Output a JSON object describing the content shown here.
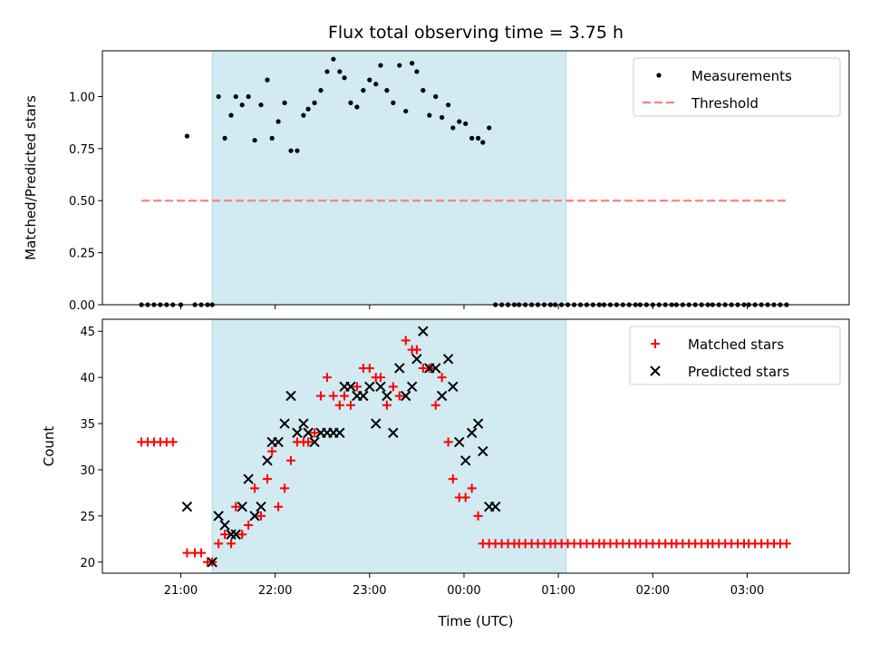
{
  "chart_data": {
    "title": "Flux total observing time = 3.75 h",
    "xlabel": "Time (UTC)",
    "x_ticks": [
      "21:00",
      "22:00",
      "23:00",
      "00:00",
      "01:00",
      "02:00",
      "03:00"
    ],
    "x_tick_hours": [
      21,
      22,
      23,
      24,
      25,
      26,
      27
    ],
    "xlim": [
      20.17,
      28.08
    ],
    "shaded_interval": {
      "start": "21:20",
      "end": "01:05",
      "color": "#add8e6"
    },
    "panels": [
      {
        "type": "scatter",
        "ylabel": "Matched/Predicted stars",
        "ylim": [
          0,
          1.22
        ],
        "y_ticks": [
          "0.00",
          "0.25",
          "0.50",
          "0.75",
          "1.00"
        ],
        "legend_position": "top-right",
        "series": [
          {
            "name": "Measurements",
            "marker": "dot",
            "color": "#000000",
            "x": [
              "20:35",
              "20:39",
              "20:43",
              "20:47",
              "20:51",
              "20:55",
              "21:00",
              "21:04",
              "21:09",
              "21:13",
              "21:17",
              "21:20",
              "21:24",
              "21:28",
              "21:32",
              "21:35",
              "21:39",
              "21:43",
              "21:47",
              "21:51",
              "21:55",
              "21:58",
              "22:02",
              "22:06",
              "22:10",
              "22:14",
              "22:18",
              "22:21",
              "22:25",
              "22:29",
              "22:33",
              "22:37",
              "22:41",
              "22:44",
              "22:48",
              "22:52",
              "22:56",
              "23:00",
              "23:04",
              "23:07",
              "23:11",
              "23:15",
              "23:19",
              "23:23",
              "23:27",
              "23:30",
              "23:34",
              "23:38",
              "23:42",
              "23:46",
              "23:50",
              "23:53",
              "23:57",
              "00:01",
              "00:05",
              "00:09",
              "00:12",
              "00:16",
              "00:20",
              "00:24",
              "00:28",
              "00:32",
              "00:35",
              "00:39",
              "00:43",
              "00:47",
              "00:51",
              "00:55",
              "00:58",
              "01:02",
              "01:06",
              "01:10",
              "01:14",
              "01:18",
              "01:22",
              "01:26",
              "01:29",
              "01:33",
              "01:37",
              "01:41",
              "01:45",
              "01:49",
              "01:52",
              "01:56",
              "02:00",
              "02:04",
              "02:08",
              "02:12",
              "02:15",
              "02:19",
              "02:23",
              "02:27",
              "02:31",
              "02:35",
              "02:38",
              "02:42",
              "02:46",
              "02:50",
              "02:54",
              "02:58",
              "03:01",
              "03:05",
              "03:09",
              "03:13",
              "03:17",
              "03:21",
              "03:25"
            ],
            "values": [
              0,
              0,
              0,
              0,
              0,
              0,
              0,
              0.81,
              0,
              0,
              0,
              0,
              1.0,
              0.8,
              0.91,
              1.0,
              0.96,
              1.0,
              0.79,
              0.96,
              1.08,
              0.8,
              0.88,
              0.97,
              0.74,
              0.74,
              0.91,
              0.94,
              0.97,
              1.03,
              1.12,
              1.18,
              1.12,
              1.09,
              0.97,
              0.95,
              1.03,
              1.08,
              1.06,
              1.15,
              1.03,
              0.97,
              1.15,
              0.93,
              1.16,
              1.12,
              1.03,
              0.91,
              1.0,
              0.9,
              0.96,
              0.85,
              0.88,
              0.87,
              0.8,
              0.8,
              0.78,
              0.85,
              0,
              0,
              0,
              0,
              0,
              0,
              0,
              0,
              0,
              0,
              0,
              0,
              0,
              0,
              0,
              0,
              0,
              0,
              0,
              0,
              0,
              0,
              0,
              0,
              0,
              0,
              0,
              0,
              0,
              0,
              0,
              0,
              0,
              0,
              0,
              0,
              0,
              0,
              0,
              0,
              0,
              0,
              0,
              0,
              0,
              0,
              0,
              0,
              0
            ]
          },
          {
            "name": "Threshold",
            "type": "line",
            "style": "dashed",
            "color": "#ff7f7f",
            "x": [
              "20:35",
              "03:25"
            ],
            "values": [
              0.5,
              0.5
            ]
          }
        ]
      },
      {
        "type": "scatter",
        "ylabel": "Count",
        "ylim": [
          18.8,
          46.3
        ],
        "y_ticks": [
          "20",
          "25",
          "30",
          "35",
          "40",
          "45"
        ],
        "legend_position": "top-right",
        "series": [
          {
            "name": "Matched stars",
            "marker": "plus",
            "color": "#ff0000",
            "x": [
              "20:35",
              "20:39",
              "20:43",
              "20:47",
              "20:51",
              "20:55",
              "21:04",
              "21:09",
              "21:13",
              "21:17",
              "21:20",
              "21:24",
              "21:28",
              "21:32",
              "21:35",
              "21:39",
              "21:43",
              "21:47",
              "21:51",
              "21:55",
              "21:58",
              "22:02",
              "22:06",
              "22:10",
              "22:14",
              "22:18",
              "22:21",
              "22:25",
              "22:29",
              "22:33",
              "22:37",
              "22:41",
              "22:44",
              "22:48",
              "22:52",
              "22:56",
              "23:00",
              "23:04",
              "23:07",
              "23:11",
              "23:15",
              "23:19",
              "23:23",
              "23:27",
              "23:30",
              "23:34",
              "23:38",
              "23:42",
              "23:46",
              "23:50",
              "23:53",
              "23:57",
              "00:01",
              "00:05",
              "00:09",
              "00:12",
              "00:16",
              "00:20",
              "00:24",
              "00:28",
              "00:32",
              "00:35",
              "00:39",
              "00:43",
              "00:47",
              "00:51",
              "00:55",
              "00:58",
              "01:02",
              "01:06",
              "01:10",
              "01:14",
              "01:18",
              "01:22",
              "01:26",
              "01:29",
              "01:33",
              "01:37",
              "01:41",
              "01:45",
              "01:49",
              "01:52",
              "01:56",
              "02:00",
              "02:04",
              "02:08",
              "02:12",
              "02:15",
              "02:19",
              "02:23",
              "02:27",
              "02:31",
              "02:35",
              "02:38",
              "02:42",
              "02:46",
              "02:50",
              "02:54",
              "02:58",
              "03:01",
              "03:05",
              "03:09",
              "03:13",
              "03:17",
              "03:21",
              "03:25"
            ],
            "values": [
              33,
              33,
              33,
              33,
              33,
              33,
              21,
              21,
              21,
              20,
              20,
              22,
              23,
              22,
              26,
              23,
              24,
              28,
              25,
              29,
              32,
              26,
              28,
              31,
              33,
              33,
              33,
              34,
              38,
              40,
              38,
              37,
              38,
              37,
              39,
              41,
              41,
              40,
              40,
              37,
              39,
              38,
              44,
              43,
              43,
              41,
              41,
              37,
              40,
              33,
              29,
              27,
              27,
              28,
              25,
              22,
              22,
              22,
              22,
              22,
              22,
              22,
              22,
              22,
              22,
              22,
              22,
              22,
              22,
              22,
              22,
              22,
              22,
              22,
              22,
              22,
              22,
              22,
              22,
              22,
              22,
              22,
              22,
              22,
              22,
              22,
              22,
              22,
              22,
              22,
              22,
              22,
              22,
              22,
              22,
              22,
              22,
              22,
              22,
              22,
              22,
              22,
              22,
              22,
              22,
              22
            ]
          },
          {
            "name": "Predicted stars",
            "marker": "x",
            "color": "#000000",
            "x": [
              "21:04",
              "21:20",
              "21:24",
              "21:28",
              "21:32",
              "21:35",
              "21:39",
              "21:43",
              "21:47",
              "21:51",
              "21:55",
              "21:58",
              "22:02",
              "22:06",
              "22:10",
              "22:14",
              "22:18",
              "22:21",
              "22:25",
              "22:29",
              "22:33",
              "22:37",
              "22:41",
              "22:44",
              "22:48",
              "22:52",
              "22:56",
              "23:00",
              "23:04",
              "23:07",
              "23:11",
              "23:15",
              "23:19",
              "23:23",
              "23:27",
              "23:30",
              "23:34",
              "23:38",
              "23:42",
              "23:46",
              "23:50",
              "23:53",
              "23:57",
              "00:01",
              "00:05",
              "00:09",
              "00:12",
              "00:16",
              "00:20"
            ],
            "values": [
              26,
              20,
              25,
              24,
              23,
              23,
              26,
              29,
              25,
              26,
              31,
              33,
              33,
              35,
              38,
              34,
              35,
              34,
              33,
              34,
              34,
              34,
              34,
              39,
              39,
              38,
              38,
              39,
              35,
              39,
              38,
              34,
              41,
              38,
              39,
              42,
              45,
              41,
              41,
              38,
              42,
              39,
              33,
              31,
              34,
              35,
              32,
              26,
              26
            ]
          }
        ]
      }
    ]
  }
}
